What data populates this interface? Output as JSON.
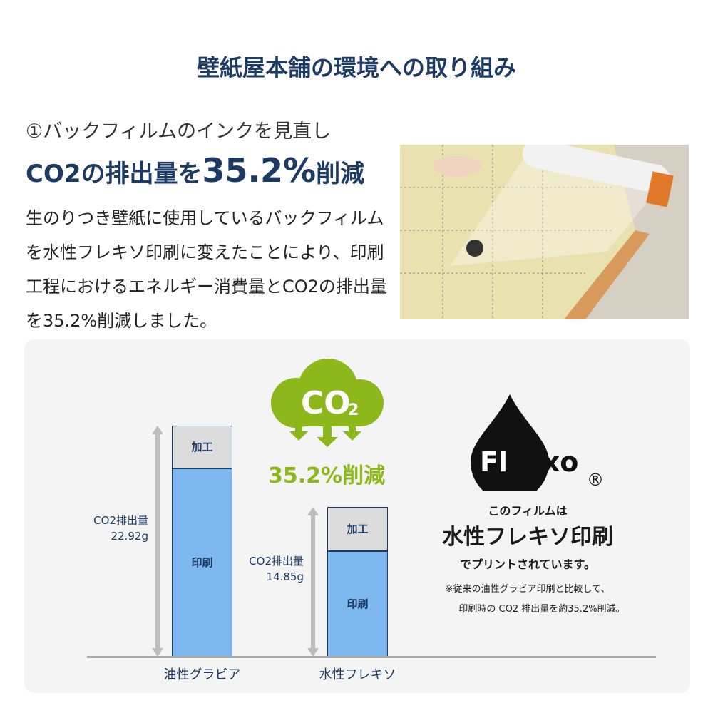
{
  "header": {
    "title": "壁紙屋本舗の環境への取り組み"
  },
  "section": {
    "subtitle": "①バックフィルムのインクを見直し",
    "headline_pre": "CO2の排出量を",
    "headline_value": "35.2%",
    "headline_post": "削減",
    "body": "生のりつき壁紙に使用しているバックフィルムを水性フレキソ印刷に変えたことにより、印刷工程におけるエネルギー消費量とCO2の排出量を35.2%削減しました。"
  },
  "photo": {
    "description_icon": "wallpaper-roll-photo"
  },
  "badge": {
    "cloud_text": "CO",
    "cloud_sub": "2",
    "reduction": "35.2%削減",
    "color": "#8cb81c"
  },
  "flexo": {
    "logo": "Flexo",
    "registered": "®",
    "line1": "このフィルムは",
    "line2": "水性フレキソ印刷",
    "line3": "でプリントされています。",
    "note1": "※従来の油性グラビア印刷と比較して、",
    "note2": "印刷時の CO2 排出量を約35.2%削減。"
  },
  "chart_data": {
    "type": "bar",
    "stacked": true,
    "categories": [
      "油性グラビア",
      "水性フレキソ"
    ],
    "series": [
      {
        "name": "印刷",
        "values": [
          18.7,
          10.5
        ],
        "color": "#7db8f0"
      },
      {
        "name": "加工",
        "values": [
          4.22,
          4.35
        ],
        "color": "#dcdcdc"
      }
    ],
    "totals": [
      22.92,
      14.85
    ],
    "total_labels": [
      [
        "CO2排出量",
        "22.92g"
      ],
      [
        "CO2排出量",
        "14.85g"
      ]
    ],
    "ylim": [
      0,
      22.92
    ],
    "grid": false,
    "legend": "none"
  }
}
